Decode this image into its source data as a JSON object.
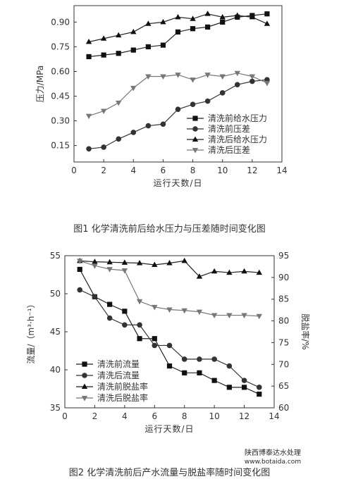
{
  "chart_data": [
    {
      "type": "line",
      "caption": "图1 化学清洗前后给水压力与压差随时间变化图",
      "xlabel": "运行天数/日",
      "ylabel": "压力/MPa",
      "xlim": [
        0,
        14
      ],
      "ylim": [
        0.05,
        1.0
      ],
      "xticks": [
        "0",
        "2",
        "4",
        "6",
        "8",
        "10",
        "12",
        "14"
      ],
      "yticks": [
        "0.15",
        "0.30",
        "0.45",
        "0.60",
        "0.75",
        "0.90"
      ],
      "legend_position": "bottom-right",
      "series": [
        {
          "name": "清洗前给水压力",
          "marker": "square",
          "x": [
            1,
            2,
            3,
            4,
            5,
            6,
            7,
            8,
            9,
            10,
            11,
            12,
            13
          ],
          "values": [
            0.69,
            0.7,
            0.71,
            0.73,
            0.75,
            0.76,
            0.84,
            0.86,
            0.87,
            0.9,
            0.93,
            0.94,
            0.95
          ]
        },
        {
          "name": "清洗前压差",
          "marker": "circle",
          "x": [
            1,
            2,
            3,
            4,
            5,
            6,
            7,
            8,
            9,
            10,
            11,
            12,
            13
          ],
          "values": [
            0.13,
            0.14,
            0.19,
            0.23,
            0.27,
            0.28,
            0.37,
            0.4,
            0.42,
            0.47,
            0.52,
            0.54,
            0.55
          ]
        },
        {
          "name": "清洗后给水压力",
          "marker": "triangle-up",
          "x": [
            1,
            2,
            3,
            4,
            5,
            6,
            7,
            8,
            9,
            10,
            11,
            12,
            13
          ],
          "values": [
            0.78,
            0.8,
            0.82,
            0.84,
            0.89,
            0.9,
            0.93,
            0.92,
            0.95,
            0.93,
            0.94,
            0.93,
            0.89
          ]
        },
        {
          "name": "清洗后压差",
          "marker": "triangle-down",
          "x": [
            1,
            2,
            3,
            4,
            5,
            6,
            7,
            8,
            9,
            10,
            11,
            12,
            13
          ],
          "values": [
            0.33,
            0.36,
            0.41,
            0.5,
            0.57,
            0.57,
            0.58,
            0.55,
            0.58,
            0.57,
            0.59,
            0.57,
            0.53
          ]
        }
      ]
    },
    {
      "type": "line",
      "caption": "图2 化学清洗前后产水流量与脱盐率随时间变化图",
      "xlabel": "运行天数/日",
      "ylabel": "流量/（m³·h⁻¹）",
      "ylabel_right": "脱盐率/%",
      "xlim": [
        0,
        14
      ],
      "ylim": [
        35,
        55
      ],
      "ylim_right": [
        60,
        95
      ],
      "xticks": [
        "0",
        "2",
        "4",
        "6",
        "8",
        "10",
        "12",
        "14"
      ],
      "yticks": [
        "35",
        "40",
        "45",
        "50",
        "55"
      ],
      "yticks_right": [
        "60",
        "65",
        "70",
        "75",
        "80",
        "85",
        "90",
        "95"
      ],
      "legend_position": "bottom-left",
      "series": [
        {
          "name": "清洗前流量",
          "marker": "square",
          "axis": "left",
          "x": [
            1,
            2,
            3,
            4,
            5,
            6,
            7,
            8,
            9,
            10,
            11,
            12,
            13
          ],
          "values": [
            53.2,
            49.6,
            48.6,
            47.7,
            44.1,
            44.1,
            40.5,
            39.6,
            39.6,
            38.6,
            37.7,
            37.7,
            36.8
          ]
        },
        {
          "name": "清洗后流量",
          "marker": "circle",
          "axis": "left",
          "x": [
            1,
            2,
            3,
            4,
            5,
            6,
            7,
            8,
            9,
            10,
            11,
            12,
            13
          ],
          "values": [
            50.5,
            49.6,
            46.8,
            45.9,
            45.9,
            43.2,
            43.2,
            41.4,
            41.4,
            41.4,
            40.5,
            38.6,
            37.7
          ]
        },
        {
          "name": "清洗前脱盐率",
          "marker": "triangle-up",
          "axis": "right",
          "x": [
            1,
            2,
            3,
            4,
            5,
            6,
            7,
            8,
            9,
            10,
            11,
            12,
            13
          ],
          "values": [
            93.8,
            93.6,
            93.5,
            93.4,
            93.3,
            92.9,
            93.3,
            93.8,
            90.2,
            91.4,
            91.1,
            91.4,
            91.1
          ]
        },
        {
          "name": "清洗后脱盐率",
          "marker": "triangle-down",
          "axis": "right",
          "x": [
            1,
            2,
            3,
            4,
            5,
            6,
            7,
            8,
            9,
            10,
            11,
            12,
            13
          ],
          "values": [
            93.8,
            92.7,
            91.9,
            91.6,
            84.5,
            83.2,
            82.6,
            82.4,
            82.1,
            81.3,
            81.3,
            81.3,
            81.1
          ]
        }
      ]
    }
  ],
  "watermark": {
    "line1": "陕西博泰达水处理",
    "line2": "www.botaida.com"
  }
}
